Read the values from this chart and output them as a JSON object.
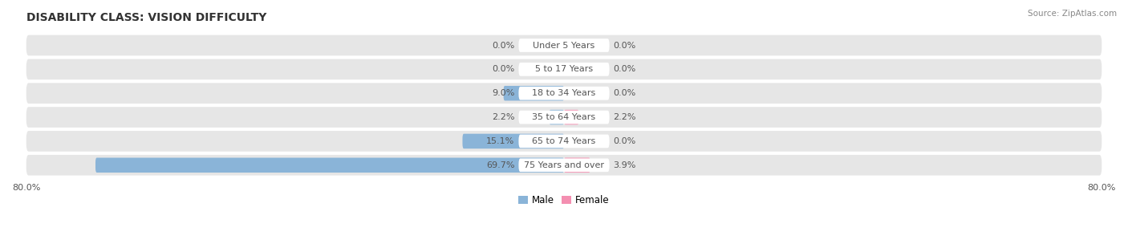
{
  "title": "DISABILITY CLASS: VISION DIFFICULTY",
  "source": "Source: ZipAtlas.com",
  "categories": [
    "Under 5 Years",
    "5 to 17 Years",
    "18 to 34 Years",
    "35 to 64 Years",
    "65 to 74 Years",
    "75 Years and over"
  ],
  "male_values": [
    0.0,
    0.0,
    9.0,
    2.2,
    15.1,
    69.7
  ],
  "female_values": [
    0.0,
    0.0,
    0.0,
    2.2,
    0.0,
    3.9
  ],
  "male_color": "#8ab4d8",
  "female_color": "#f48fb1",
  "axis_max": 80.0,
  "bg_row_color": "#e6e6e6",
  "title_fontsize": 10,
  "label_fontsize": 8,
  "tick_fontsize": 8,
  "legend_fontsize": 8.5,
  "label_color": "#555555",
  "source_color": "#888888"
}
